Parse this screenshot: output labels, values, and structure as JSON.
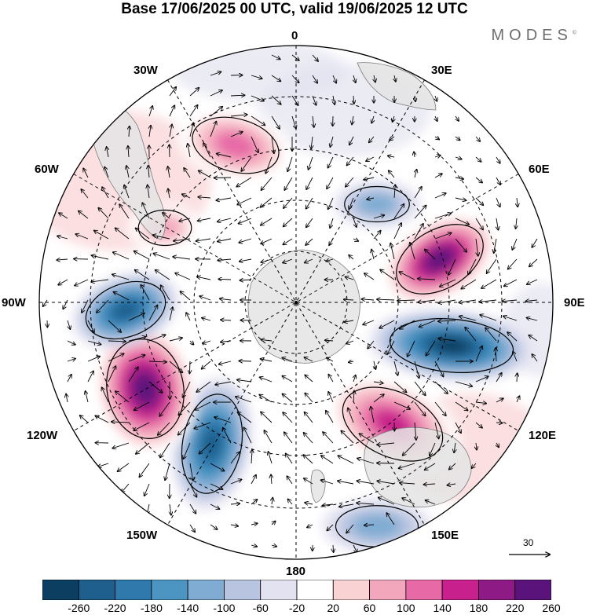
{
  "header": {
    "title": "Base 17/06/2025 00 UTC, valid 19/06/2025 12 UTC",
    "brand": "MODES",
    "brand_mark": "©"
  },
  "map": {
    "projection": "south-polar-stereographic",
    "longitude_labels": {
      "lon_0": "0",
      "lon_30e": "30E",
      "lon_60e": "60E",
      "lon_90e": "90E",
      "lon_120e": "120E",
      "lon_150e": "150E",
      "lon_180": "180",
      "lon_150w": "150W",
      "lon_120w": "120W",
      "lon_90w": "90W",
      "lon_60w": "60W",
      "lon_30w": "30W"
    },
    "land_color": "#e8e8e8",
    "coast_color": "#8a8a8a",
    "anomalies": [
      {
        "sign": "positive",
        "region": "south of Atlantic near 20W",
        "peak": 160
      },
      {
        "sign": "negative",
        "region": "near 20E",
        "peak": -100
      },
      {
        "sign": "positive",
        "region": "near 65E",
        "peak": 260
      },
      {
        "sign": "negative",
        "region": "near 100E",
        "peak": -260
      },
      {
        "sign": "positive",
        "region": "near 135E",
        "peak": 180
      },
      {
        "sign": "negative",
        "region": "near 160E",
        "peak": -100
      },
      {
        "sign": "negative",
        "region": "near 145W",
        "peak": -220
      },
      {
        "sign": "positive",
        "region": "near 115W",
        "peak": 260
      },
      {
        "sign": "negative",
        "region": "near 95W",
        "peak": -220
      },
      {
        "sign": "positive",
        "region": "near 65W",
        "peak": 100
      }
    ]
  },
  "colorbar": {
    "ticks": [
      "-260",
      "-220",
      "-180",
      "-140",
      "-100",
      "-60",
      "-20",
      "20",
      "60",
      "100",
      "140",
      "180",
      "220",
      "260"
    ],
    "colors": [
      "#0b3e60",
      "#1f5f8d",
      "#2f79ad",
      "#4c95c3",
      "#80acd3",
      "#b8c4e0",
      "#e2e2f0",
      "#ffffff",
      "#f9d2d4",
      "#f3a7bd",
      "#e76aa6",
      "#c8208c",
      "#8e1a86",
      "#5a137a"
    ]
  },
  "vector_reference": {
    "label": "30"
  }
}
